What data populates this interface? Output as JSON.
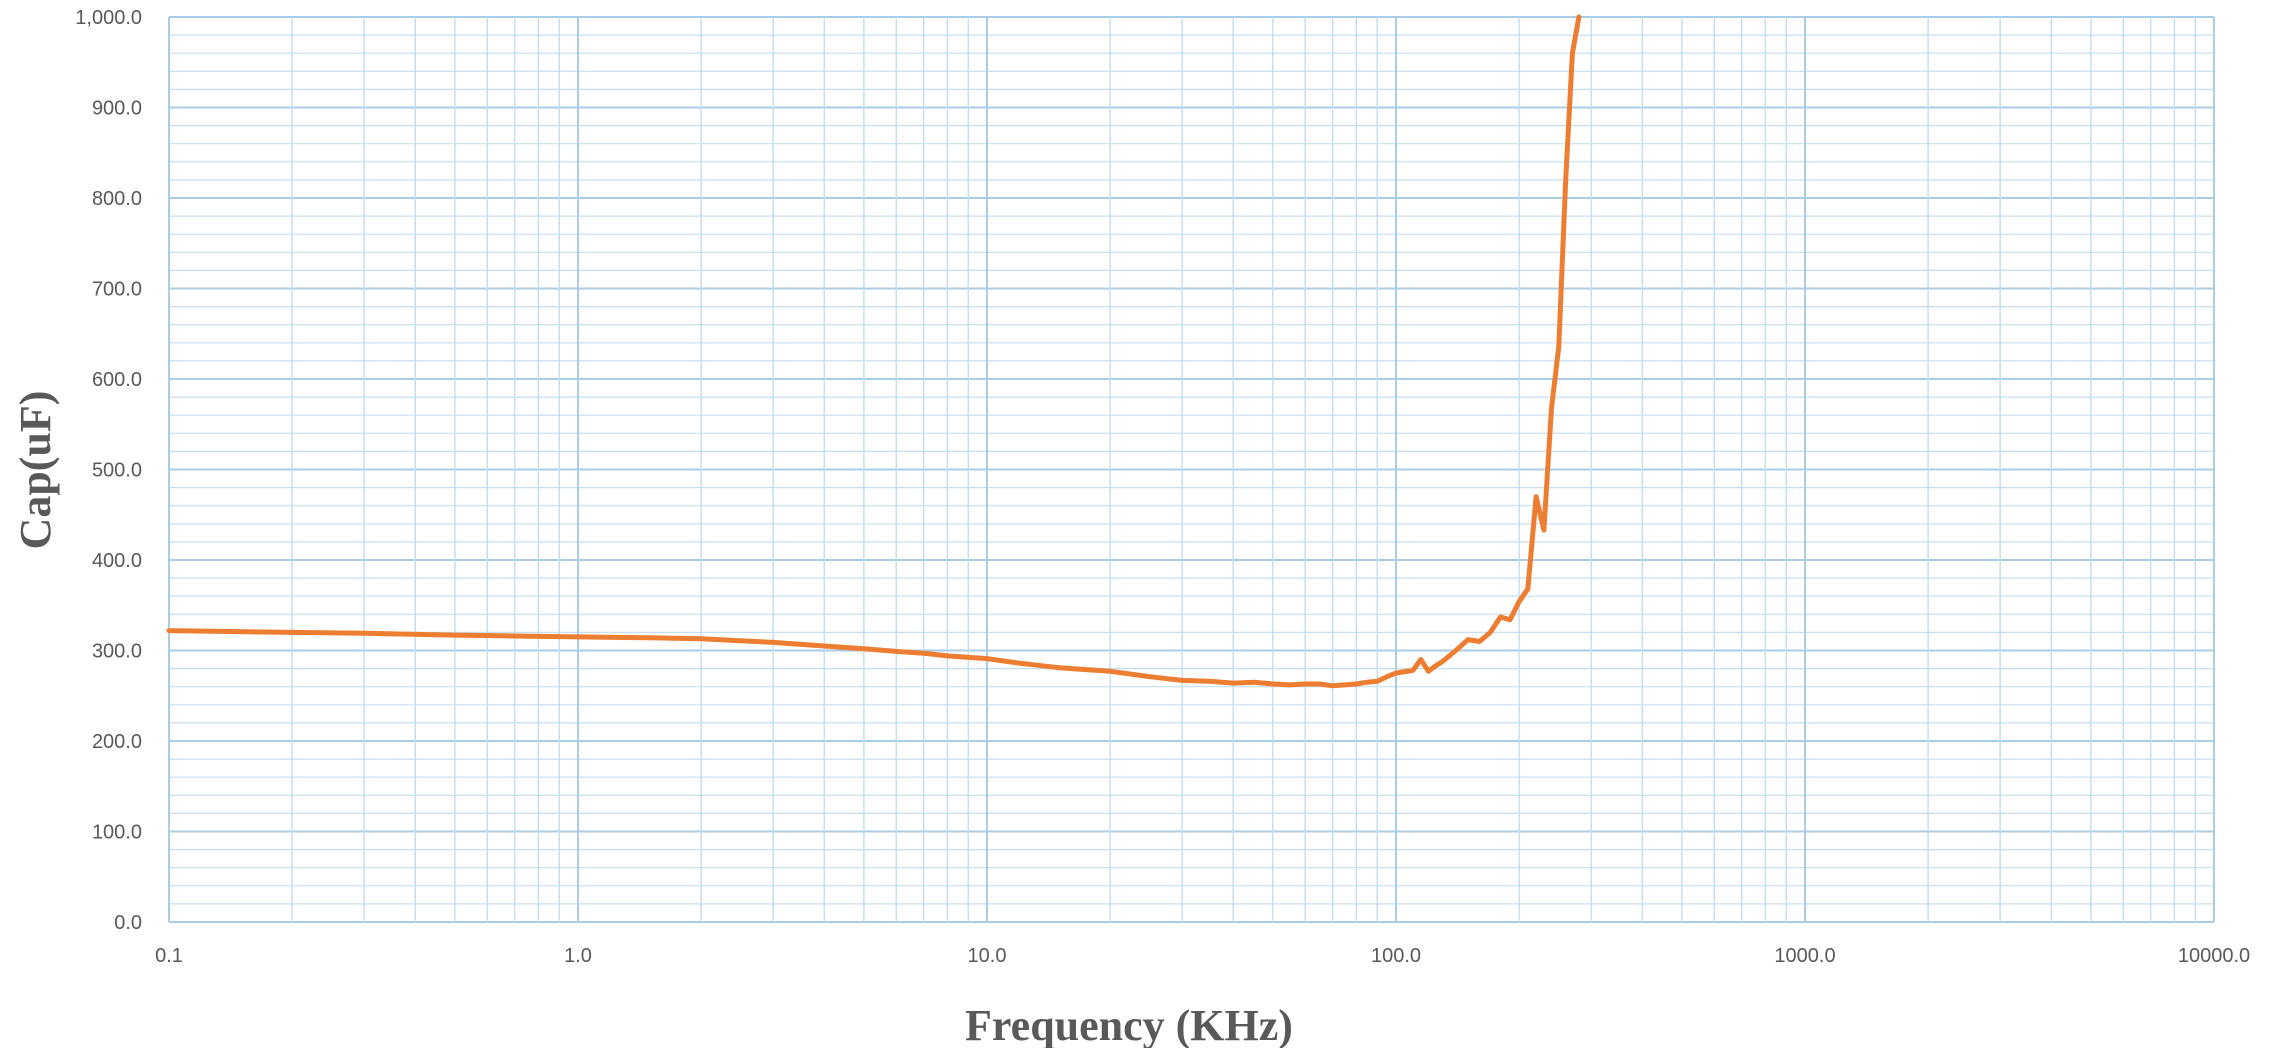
{
  "chart_data": {
    "type": "line",
    "title": "",
    "xlabel": "Frequency (KHz)",
    "ylabel": "Cap(uF)",
    "x_scale": "log",
    "xlim": [
      0.1,
      10000
    ],
    "ylim": [
      0,
      1000
    ],
    "x_ticks": [
      "0.1",
      "1.0",
      "10.0",
      "100.0",
      "1000.0",
      "10000.0"
    ],
    "y_ticks": [
      "0.0",
      "100.0",
      "200.0",
      "300.0",
      "400.0",
      "500.0",
      "600.0",
      "700.0",
      "800.0",
      "900.0",
      "1,000.0"
    ],
    "grid": true,
    "legend": "none",
    "colors": {
      "line": "#ed7d31",
      "grid_major": "#a9cde6",
      "grid_minor": "#c5dff0",
      "axis_text": "#595959"
    },
    "series": [
      {
        "x": [
          0.1,
          0.2,
          0.3,
          0.5,
          0.7,
          1.0,
          1.5,
          2.0,
          3.0,
          4.0,
          5.0,
          6.0,
          7.0,
          8.0,
          10.0,
          12.0,
          15.0,
          20.0,
          25.0,
          30.0,
          35.0,
          40.0,
          45.0,
          50.0,
          55.0,
          60.0,
          65.0,
          70.0,
          75.0,
          80.0,
          85.0,
          90.0,
          95.0,
          100.0,
          110.0,
          115.0,
          120.0,
          125.0,
          130.0,
          140.0,
          150.0,
          160.0,
          170.0,
          180.0,
          190.0,
          200.0,
          210.0,
          220.0,
          230.0,
          240.0,
          250.0,
          260.0,
          270.0,
          280.0
        ],
        "values": [
          322,
          320,
          319,
          317,
          316,
          315,
          314,
          313,
          309,
          305,
          302,
          299,
          297,
          294,
          291,
          286,
          281,
          277,
          271,
          267,
          266,
          264,
          265,
          263,
          262,
          263,
          263,
          261,
          262,
          263,
          265,
          266,
          271,
          275,
          278,
          290,
          277,
          283,
          288,
          300,
          312,
          310,
          320,
          337,
          334,
          354,
          368,
          470,
          433,
          568,
          636,
          820,
          960,
          1000
        ]
      }
    ]
  }
}
